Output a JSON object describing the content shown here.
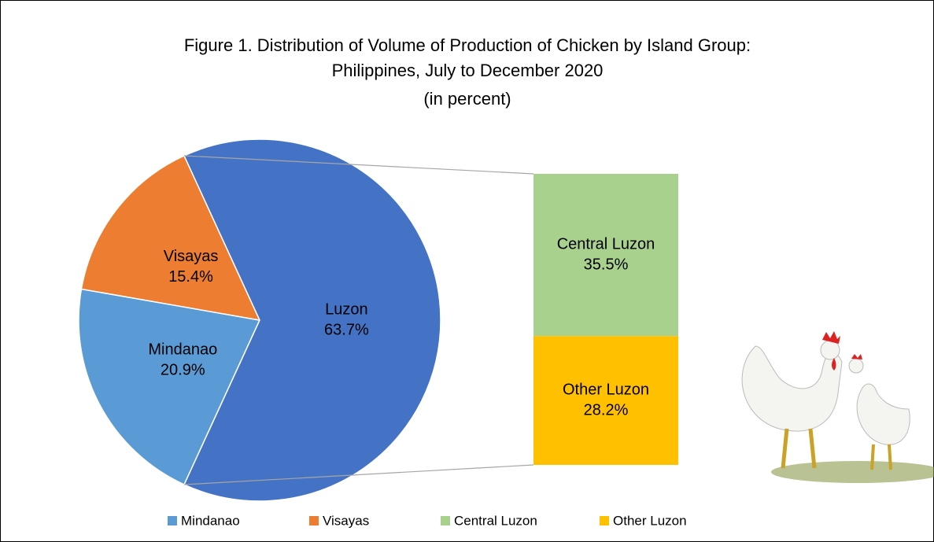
{
  "chart_data": {
    "type": "pie",
    "title": "Figure 1.  Distribution of Volume of Production of Chicken by Island Group:",
    "subtitle": "Philippines, July to December 2020",
    "unit_note": "(in percent)",
    "categories": [
      "Mindanao",
      "Visayas",
      "Luzon"
    ],
    "values": [
      20.9,
      15.4,
      63.7
    ],
    "value_labels": [
      "20.9%",
      "15.4%",
      "63.7%"
    ],
    "colors": [
      "#5b9bd5",
      "#ed7d31",
      "#4472c4"
    ],
    "breakdown": {
      "categories": [
        "Central Luzon",
        "Other Luzon"
      ],
      "values": [
        35.5,
        28.2
      ],
      "value_labels": [
        "35.5%",
        "28.2%"
      ],
      "colors": [
        "#a9d18e",
        "#ffc000"
      ]
    },
    "legend": "bottom"
  }
}
